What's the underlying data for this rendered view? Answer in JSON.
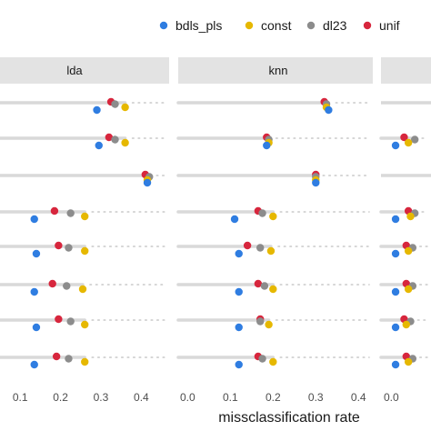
{
  "chart_data": {
    "type": "scatter",
    "xlabel": "missclassification rate",
    "legend": {
      "position": "top-right",
      "entries": [
        {
          "name": "bdls_pls",
          "color": "#2f7de1"
        },
        {
          "name": "const",
          "color": "#e6b800"
        },
        {
          "name": "dl23",
          "color": "#8c8c8c"
        },
        {
          "name": "unif",
          "color": "#d7263d"
        }
      ]
    },
    "panels": [
      {
        "title": "lda",
        "xlim": [
          0.05,
          0.46
        ],
        "ticks": [
          "0.1",
          "0.2",
          "0.3",
          "0.4"
        ],
        "rows": [
          {
            "bdls_pls": 0.29,
            "const": 0.36,
            "dl23": 0.335,
            "unif": 0.325
          },
          {
            "bdls_pls": 0.295,
            "const": 0.36,
            "dl23": 0.335,
            "unif": 0.32
          },
          {
            "bdls_pls": 0.415,
            "const": 0.415,
            "dl23": 0.42,
            "unif": 0.41
          },
          {
            "bdls_pls": 0.135,
            "const": 0.26,
            "dl23": 0.225,
            "unif": 0.185
          },
          {
            "bdls_pls": 0.14,
            "const": 0.26,
            "dl23": 0.22,
            "unif": 0.195
          },
          {
            "bdls_pls": 0.135,
            "const": 0.255,
            "dl23": 0.215,
            "unif": 0.18
          },
          {
            "bdls_pls": 0.14,
            "const": 0.26,
            "dl23": 0.225,
            "unif": 0.195
          },
          {
            "bdls_pls": 0.135,
            "const": 0.26,
            "dl23": 0.22,
            "unif": 0.19
          }
        ]
      },
      {
        "title": "knn",
        "xlim": [
          -0.005,
          0.425
        ],
        "ticks": [
          "0.0",
          "0.1",
          "0.2",
          "0.3",
          "0.4"
        ],
        "rows": [
          {
            "bdls_pls": 0.33,
            "const": 0.325,
            "dl23": 0.325,
            "unif": 0.32
          },
          {
            "bdls_pls": 0.185,
            "const": 0.19,
            "dl23": 0.19,
            "unif": 0.185
          },
          {
            "bdls_pls": 0.3,
            "const": 0.3,
            "dl23": 0.3,
            "unif": 0.3
          },
          {
            "bdls_pls": 0.11,
            "const": 0.2,
            "dl23": 0.175,
            "unif": 0.165
          },
          {
            "bdls_pls": 0.12,
            "const": 0.195,
            "dl23": 0.17,
            "unif": 0.14
          },
          {
            "bdls_pls": 0.12,
            "const": 0.2,
            "dl23": 0.18,
            "unif": 0.165
          },
          {
            "bdls_pls": 0.12,
            "const": 0.19,
            "dl23": 0.17,
            "unif": 0.17
          },
          {
            "bdls_pls": 0.12,
            "const": 0.2,
            "dl23": 0.175,
            "unif": 0.165
          }
        ]
      },
      {
        "title": "",
        "xlim": [
          -0.005,
          0.425
        ],
        "ticks": [
          "0.0"
        ],
        "rows": [
          {},
          {
            "bdls_pls": 0.01,
            "const": 0.04,
            "dl23": 0.055,
            "unif": 0.03
          },
          {},
          {
            "bdls_pls": 0.01,
            "const": 0.045,
            "dl23": 0.055,
            "unif": 0.04
          },
          {
            "bdls_pls": 0.01,
            "const": 0.04,
            "dl23": 0.05,
            "unif": 0.035
          },
          {
            "bdls_pls": 0.01,
            "const": 0.04,
            "dl23": 0.05,
            "unif": 0.035
          },
          {
            "bdls_pls": 0.01,
            "const": 0.035,
            "dl23": 0.045,
            "unif": 0.03
          },
          {
            "bdls_pls": 0.01,
            "const": 0.04,
            "dl23": 0.05,
            "unif": 0.035
          }
        ]
      }
    ]
  }
}
